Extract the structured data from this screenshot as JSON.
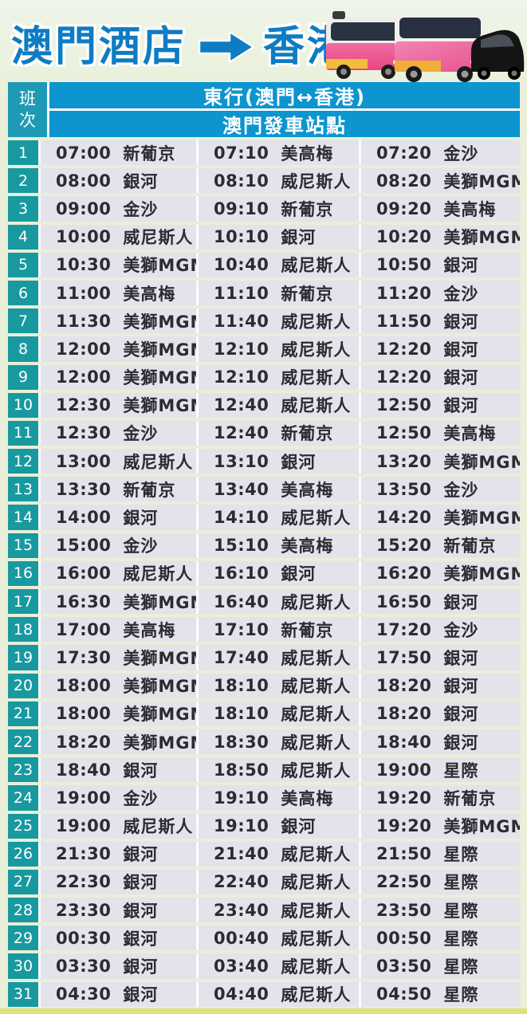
{
  "page": {
    "title_from": "澳門酒店",
    "title_to": "香港",
    "arrow_icon": "right-arrow",
    "bottom_strip_color": "#dde07f"
  },
  "colors": {
    "title_blue": "#0e7cc3",
    "header_bar_blue": "#0c95cf",
    "trip_header_teal": "#1e9ab5",
    "row_number_teal": "#1899a0",
    "cell_background": "#e3e3ec",
    "page_background": "#e9efd8"
  },
  "table": {
    "trip_col_label": "班次",
    "direction_header": "東行(澳門↔香港)",
    "station_header": "澳門發車站點",
    "rows": [
      {
        "no": "1",
        "stops": [
          [
            "07:00",
            "新葡京"
          ],
          [
            "07:10",
            "美高梅"
          ],
          [
            "07:20",
            "金沙"
          ]
        ]
      },
      {
        "no": "2",
        "stops": [
          [
            "08:00",
            "銀河"
          ],
          [
            "08:10",
            "威尼斯人"
          ],
          [
            "08:20",
            "美獅MGM"
          ]
        ]
      },
      {
        "no": "3",
        "stops": [
          [
            "09:00",
            "金沙"
          ],
          [
            "09:10",
            "新葡京"
          ],
          [
            "09:20",
            "美高梅"
          ]
        ]
      },
      {
        "no": "4",
        "stops": [
          [
            "10:00",
            "威尼斯人"
          ],
          [
            "10:10",
            "銀河"
          ],
          [
            "10:20",
            "美獅MGM"
          ]
        ]
      },
      {
        "no": "5",
        "stops": [
          [
            "10:30",
            "美獅MGM"
          ],
          [
            "10:40",
            "威尼斯人"
          ],
          [
            "10:50",
            "銀河"
          ]
        ]
      },
      {
        "no": "6",
        "stops": [
          [
            "11:00",
            "美高梅"
          ],
          [
            "11:10",
            "新葡京"
          ],
          [
            "11:20",
            "金沙"
          ]
        ]
      },
      {
        "no": "7",
        "stops": [
          [
            "11:30",
            "美獅MGM"
          ],
          [
            "11:40",
            "威尼斯人"
          ],
          [
            "11:50",
            "銀河"
          ]
        ]
      },
      {
        "no": "8",
        "stops": [
          [
            "12:00",
            "美獅MGM"
          ],
          [
            "12:10",
            "威尼斯人"
          ],
          [
            "12:20",
            "銀河"
          ]
        ]
      },
      {
        "no": "9",
        "stops": [
          [
            "12:00",
            "美獅MGM"
          ],
          [
            "12:10",
            "威尼斯人"
          ],
          [
            "12:20",
            "銀河"
          ]
        ]
      },
      {
        "no": "10",
        "stops": [
          [
            "12:30",
            "美獅MGM"
          ],
          [
            "12:40",
            "威尼斯人"
          ],
          [
            "12:50",
            "銀河"
          ]
        ]
      },
      {
        "no": "11",
        "stops": [
          [
            "12:30",
            "金沙"
          ],
          [
            "12:40",
            "新葡京"
          ],
          [
            "12:50",
            "美高梅"
          ]
        ]
      },
      {
        "no": "12",
        "stops": [
          [
            "13:00",
            "威尼斯人"
          ],
          [
            "13:10",
            "銀河"
          ],
          [
            "13:20",
            "美獅MGM"
          ]
        ]
      },
      {
        "no": "13",
        "stops": [
          [
            "13:30",
            "新葡京"
          ],
          [
            "13:40",
            "美高梅"
          ],
          [
            "13:50",
            "金沙"
          ]
        ]
      },
      {
        "no": "14",
        "stops": [
          [
            "14:00",
            "銀河"
          ],
          [
            "14:10",
            "威尼斯人"
          ],
          [
            "14:20",
            "美獅MGM"
          ]
        ]
      },
      {
        "no": "15",
        "stops": [
          [
            "15:00",
            "金沙"
          ],
          [
            "15:10",
            "美高梅"
          ],
          [
            "15:20",
            "新葡京"
          ]
        ]
      },
      {
        "no": "16",
        "stops": [
          [
            "16:00",
            "威尼斯人"
          ],
          [
            "16:10",
            "銀河"
          ],
          [
            "16:20",
            "美獅MGM"
          ]
        ]
      },
      {
        "no": "17",
        "stops": [
          [
            "16:30",
            "美獅MGM"
          ],
          [
            "16:40",
            "威尼斯人"
          ],
          [
            "16:50",
            "銀河"
          ]
        ]
      },
      {
        "no": "18",
        "stops": [
          [
            "17:00",
            "美高梅"
          ],
          [
            "17:10",
            "新葡京"
          ],
          [
            "17:20",
            "金沙"
          ]
        ]
      },
      {
        "no": "19",
        "stops": [
          [
            "17:30",
            "美獅MGM"
          ],
          [
            "17:40",
            "威尼斯人"
          ],
          [
            "17:50",
            "銀河"
          ]
        ]
      },
      {
        "no": "20",
        "stops": [
          [
            "18:00",
            "美獅MGM"
          ],
          [
            "18:10",
            "威尼斯人"
          ],
          [
            "18:20",
            "銀河"
          ]
        ]
      },
      {
        "no": "21",
        "stops": [
          [
            "18:00",
            "美獅MGM"
          ],
          [
            "18:10",
            "威尼斯人"
          ],
          [
            "18:20",
            "銀河"
          ]
        ]
      },
      {
        "no": "22",
        "stops": [
          [
            "18:20",
            "美獅MGM"
          ],
          [
            "18:30",
            "威尼斯人"
          ],
          [
            "18:40",
            "銀河"
          ]
        ]
      },
      {
        "no": "23",
        "stops": [
          [
            "18:40",
            "銀河"
          ],
          [
            "18:50",
            "威尼斯人"
          ],
          [
            "19:00",
            "星際"
          ]
        ]
      },
      {
        "no": "24",
        "stops": [
          [
            "19:00",
            "金沙"
          ],
          [
            "19:10",
            "美高梅"
          ],
          [
            "19:20",
            "新葡京"
          ]
        ]
      },
      {
        "no": "25",
        "stops": [
          [
            "19:00",
            "威尼斯人"
          ],
          [
            "19:10",
            "銀河"
          ],
          [
            "19:20",
            "美獅MGM"
          ]
        ]
      },
      {
        "no": "26",
        "stops": [
          [
            "21:30",
            "銀河"
          ],
          [
            "21:40",
            "威尼斯人"
          ],
          [
            "21:50",
            "星際"
          ]
        ]
      },
      {
        "no": "27",
        "stops": [
          [
            "22:30",
            "銀河"
          ],
          [
            "22:40",
            "威尼斯人"
          ],
          [
            "22:50",
            "星際"
          ]
        ]
      },
      {
        "no": "28",
        "stops": [
          [
            "23:30",
            "銀河"
          ],
          [
            "23:40",
            "威尼斯人"
          ],
          [
            "23:50",
            "星際"
          ]
        ]
      },
      {
        "no": "29",
        "stops": [
          [
            "00:30",
            "銀河"
          ],
          [
            "00:40",
            "威尼斯人"
          ],
          [
            "00:50",
            "星際"
          ]
        ]
      },
      {
        "no": "30",
        "stops": [
          [
            "03:30",
            "銀河"
          ],
          [
            "03:40",
            "威尼斯人"
          ],
          [
            "03:50",
            "星際"
          ]
        ]
      },
      {
        "no": "31",
        "stops": [
          [
            "04:30",
            "銀河"
          ],
          [
            "04:40",
            "威尼斯人"
          ],
          [
            "04:50",
            "星際"
          ]
        ]
      }
    ]
  }
}
